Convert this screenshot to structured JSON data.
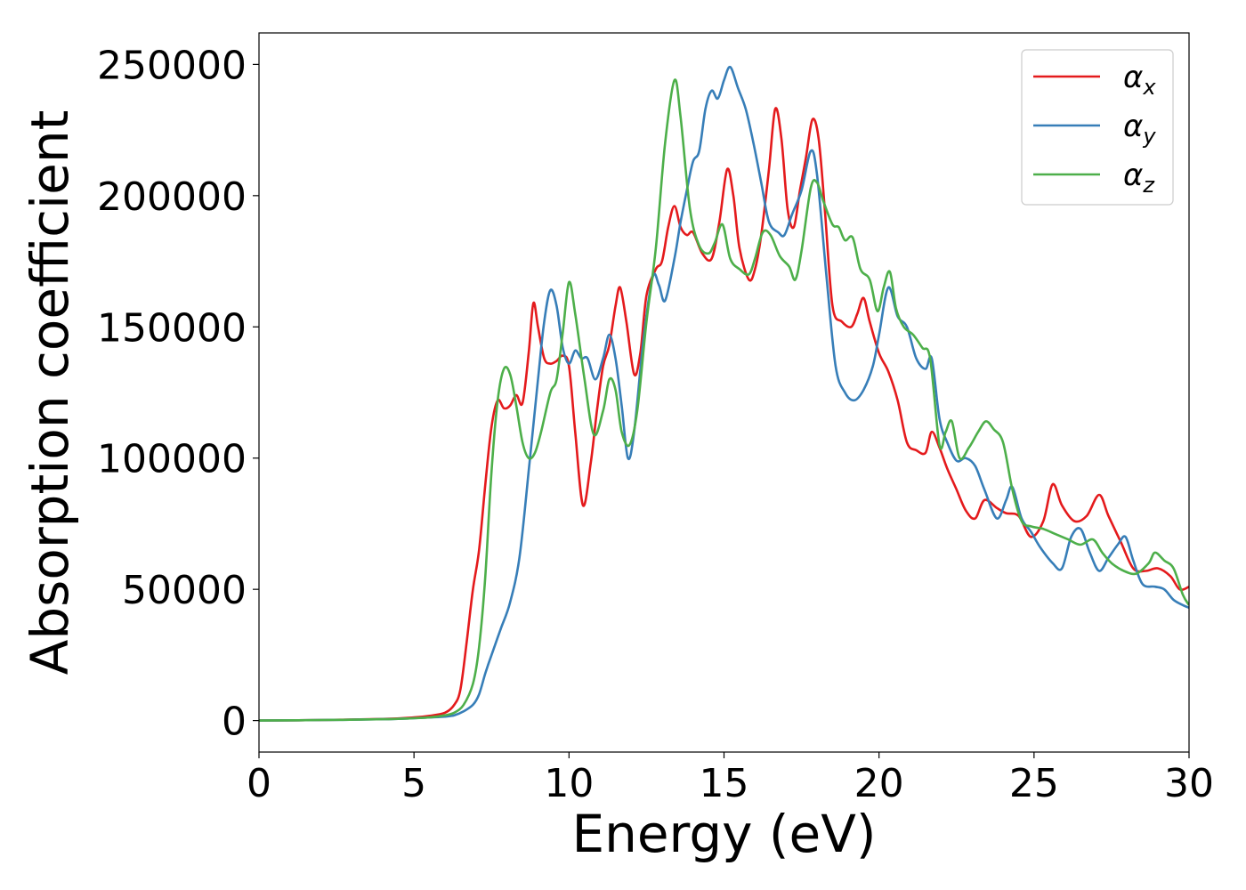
{
  "chart_data": {
    "type": "line",
    "xlabel": "Energy (eV)",
    "ylabel": "Absorption coefficient",
    "xlim": [
      0,
      30
    ],
    "ylim": [
      -12000,
      262000
    ],
    "xticks": [
      0,
      5,
      10,
      15,
      20,
      25,
      30
    ],
    "yticks": [
      0,
      50000,
      100000,
      150000,
      200000,
      250000
    ],
    "legend_position": "top-right",
    "grid": false,
    "series": [
      {
        "name": "α_x",
        "label_main": "α",
        "label_sub": "x",
        "color": "#e41a1c",
        "points": [
          [
            0,
            0
          ],
          [
            2,
            200
          ],
          [
            4,
            600
          ],
          [
            5,
            1200
          ],
          [
            5.5,
            1800
          ],
          [
            6,
            3000
          ],
          [
            6.3,
            6000
          ],
          [
            6.5,
            12000
          ],
          [
            6.7,
            30000
          ],
          [
            6.9,
            50000
          ],
          [
            7.1,
            65000
          ],
          [
            7.3,
            90000
          ],
          [
            7.5,
            112000
          ],
          [
            7.7,
            122000
          ],
          [
            7.9,
            119000
          ],
          [
            8.1,
            120000
          ],
          [
            8.3,
            124000
          ],
          [
            8.5,
            121000
          ],
          [
            8.7,
            140000
          ],
          [
            8.85,
            159000
          ],
          [
            9.0,
            150000
          ],
          [
            9.2,
            138000
          ],
          [
            9.4,
            136000
          ],
          [
            9.6,
            137000
          ],
          [
            9.8,
            139000
          ],
          [
            10.0,
            135000
          ],
          [
            10.2,
            110000
          ],
          [
            10.45,
            82000
          ],
          [
            10.7,
            98000
          ],
          [
            10.9,
            118000
          ],
          [
            11.1,
            135000
          ],
          [
            11.3,
            143000
          ],
          [
            11.5,
            158000
          ],
          [
            11.65,
            165000
          ],
          [
            11.85,
            152000
          ],
          [
            12.1,
            132000
          ],
          [
            12.3,
            140000
          ],
          [
            12.5,
            162000
          ],
          [
            12.8,
            172000
          ],
          [
            13.0,
            175000
          ],
          [
            13.2,
            188000
          ],
          [
            13.4,
            196000
          ],
          [
            13.6,
            188000
          ],
          [
            13.8,
            185000
          ],
          [
            14.0,
            186000
          ],
          [
            14.3,
            178000
          ],
          [
            14.6,
            176000
          ],
          [
            14.85,
            190000
          ],
          [
            15.1,
            210000
          ],
          [
            15.3,
            200000
          ],
          [
            15.5,
            180000
          ],
          [
            15.8,
            168000
          ],
          [
            16.0,
            172000
          ],
          [
            16.2,
            185000
          ],
          [
            16.45,
            210000
          ],
          [
            16.65,
            233000
          ],
          [
            16.85,
            222000
          ],
          [
            17.05,
            195000
          ],
          [
            17.25,
            188000
          ],
          [
            17.45,
            202000
          ],
          [
            17.65,
            215000
          ],
          [
            17.85,
            229000
          ],
          [
            18.05,
            222000
          ],
          [
            18.25,
            195000
          ],
          [
            18.5,
            158000
          ],
          [
            18.8,
            152000
          ],
          [
            19.1,
            150000
          ],
          [
            19.3,
            155000
          ],
          [
            19.5,
            161000
          ],
          [
            19.7,
            152000
          ],
          [
            20.0,
            140000
          ],
          [
            20.3,
            133000
          ],
          [
            20.6,
            122000
          ],
          [
            20.9,
            106000
          ],
          [
            21.2,
            103000
          ],
          [
            21.5,
            102000
          ],
          [
            21.7,
            110000
          ],
          [
            21.95,
            104000
          ],
          [
            22.2,
            96000
          ],
          [
            22.5,
            88000
          ],
          [
            22.8,
            80000
          ],
          [
            23.1,
            77000
          ],
          [
            23.4,
            84000
          ],
          [
            23.8,
            81000
          ],
          [
            24.1,
            79000
          ],
          [
            24.5,
            78000
          ],
          [
            24.9,
            70000
          ],
          [
            25.3,
            76000
          ],
          [
            25.6,
            90000
          ],
          [
            25.9,
            82000
          ],
          [
            26.3,
            76000
          ],
          [
            26.7,
            78000
          ],
          [
            27.1,
            86000
          ],
          [
            27.4,
            78000
          ],
          [
            27.8,
            68000
          ],
          [
            28.2,
            58000
          ],
          [
            28.6,
            57000
          ],
          [
            29.0,
            58000
          ],
          [
            29.4,
            55000
          ],
          [
            29.7,
            50000
          ],
          [
            30.0,
            51000
          ]
        ]
      },
      {
        "name": "α_y",
        "label_main": "α",
        "label_sub": "y",
        "color": "#377eb8",
        "points": [
          [
            0,
            0
          ],
          [
            2,
            200
          ],
          [
            4,
            500
          ],
          [
            5,
            900
          ],
          [
            5.5,
            1200
          ],
          [
            6,
            1500
          ],
          [
            6.3,
            2000
          ],
          [
            6.6,
            3500
          ],
          [
            6.9,
            6000
          ],
          [
            7.1,
            10000
          ],
          [
            7.3,
            18000
          ],
          [
            7.5,
            25000
          ],
          [
            7.8,
            35000
          ],
          [
            8.1,
            45000
          ],
          [
            8.4,
            62000
          ],
          [
            8.7,
            95000
          ],
          [
            9.0,
            130000
          ],
          [
            9.2,
            152000
          ],
          [
            9.4,
            164000
          ],
          [
            9.6,
            158000
          ],
          [
            9.8,
            142000
          ],
          [
            10.0,
            136000
          ],
          [
            10.2,
            141000
          ],
          [
            10.4,
            138000
          ],
          [
            10.6,
            138000
          ],
          [
            10.85,
            130000
          ],
          [
            11.1,
            138000
          ],
          [
            11.3,
            147000
          ],
          [
            11.5,
            138000
          ],
          [
            11.7,
            120000
          ],
          [
            11.9,
            100000
          ],
          [
            12.1,
            110000
          ],
          [
            12.4,
            145000
          ],
          [
            12.7,
            169000
          ],
          [
            12.9,
            166000
          ],
          [
            13.1,
            160000
          ],
          [
            13.4,
            176000
          ],
          [
            13.6,
            190000
          ],
          [
            13.8,
            202000
          ],
          [
            14.0,
            213000
          ],
          [
            14.2,
            217000
          ],
          [
            14.4,
            233000
          ],
          [
            14.6,
            240000
          ],
          [
            14.8,
            237000
          ],
          [
            15.0,
            244000
          ],
          [
            15.2,
            249000
          ],
          [
            15.45,
            241000
          ],
          [
            15.7,
            233000
          ],
          [
            15.95,
            220000
          ],
          [
            16.2,
            205000
          ],
          [
            16.45,
            190000
          ],
          [
            16.75,
            186000
          ],
          [
            16.95,
            185000
          ],
          [
            17.2,
            193000
          ],
          [
            17.5,
            202000
          ],
          [
            17.8,
            217000
          ],
          [
            18.0,
            208000
          ],
          [
            18.3,
            170000
          ],
          [
            18.6,
            135000
          ],
          [
            18.9,
            125000
          ],
          [
            19.2,
            122000
          ],
          [
            19.5,
            126000
          ],
          [
            19.8,
            135000
          ],
          [
            20.0,
            147000
          ],
          [
            20.3,
            165000
          ],
          [
            20.6,
            154000
          ],
          [
            20.9,
            150000
          ],
          [
            21.2,
            138000
          ],
          [
            21.5,
            134000
          ],
          [
            21.7,
            138000
          ],
          [
            21.95,
            115000
          ],
          [
            22.2,
            106000
          ],
          [
            22.5,
            99000
          ],
          [
            22.8,
            100000
          ],
          [
            23.1,
            97000
          ],
          [
            23.4,
            88000
          ],
          [
            23.8,
            77000
          ],
          [
            24.1,
            84000
          ],
          [
            24.3,
            89000
          ],
          [
            24.6,
            77000
          ],
          [
            24.9,
            72000
          ],
          [
            25.2,
            66000
          ],
          [
            25.6,
            60000
          ],
          [
            25.9,
            58000
          ],
          [
            26.2,
            70000
          ],
          [
            26.5,
            73000
          ],
          [
            26.8,
            64000
          ],
          [
            27.1,
            57000
          ],
          [
            27.4,
            62000
          ],
          [
            27.7,
            67000
          ],
          [
            27.95,
            70000
          ],
          [
            28.2,
            61000
          ],
          [
            28.5,
            52000
          ],
          [
            28.9,
            51000
          ],
          [
            29.2,
            50000
          ],
          [
            29.5,
            46000
          ],
          [
            29.8,
            44000
          ],
          [
            30.0,
            43000
          ]
        ]
      },
      {
        "name": "α_z",
        "label_main": "α",
        "label_sub": "z",
        "color": "#4daf4a",
        "points": [
          [
            0,
            0
          ],
          [
            2,
            200
          ],
          [
            4,
            500
          ],
          [
            5,
            900
          ],
          [
            5.5,
            1200
          ],
          [
            6,
            2000
          ],
          [
            6.3,
            3000
          ],
          [
            6.6,
            6000
          ],
          [
            6.9,
            14000
          ],
          [
            7.1,
            28000
          ],
          [
            7.3,
            55000
          ],
          [
            7.5,
            95000
          ],
          [
            7.7,
            122000
          ],
          [
            7.9,
            134000
          ],
          [
            8.1,
            132000
          ],
          [
            8.3,
            120000
          ],
          [
            8.5,
            106000
          ],
          [
            8.7,
            100000
          ],
          [
            8.9,
            102000
          ],
          [
            9.1,
            110000
          ],
          [
            9.4,
            125000
          ],
          [
            9.6,
            130000
          ],
          [
            9.8,
            148000
          ],
          [
            10.0,
            167000
          ],
          [
            10.2,
            155000
          ],
          [
            10.5,
            130000
          ],
          [
            10.8,
            109000
          ],
          [
            11.1,
            118000
          ],
          [
            11.3,
            130000
          ],
          [
            11.5,
            126000
          ],
          [
            11.7,
            110000
          ],
          [
            11.95,
            105000
          ],
          [
            12.2,
            118000
          ],
          [
            12.5,
            152000
          ],
          [
            12.8,
            180000
          ],
          [
            13.1,
            220000
          ],
          [
            13.4,
            244000
          ],
          [
            13.6,
            230000
          ],
          [
            13.9,
            195000
          ],
          [
            14.2,
            181000
          ],
          [
            14.5,
            178000
          ],
          [
            14.7,
            182000
          ],
          [
            14.95,
            189000
          ],
          [
            15.2,
            176000
          ],
          [
            15.5,
            172000
          ],
          [
            15.8,
            170000
          ],
          [
            16.0,
            176000
          ],
          [
            16.25,
            186000
          ],
          [
            16.5,
            185000
          ],
          [
            16.8,
            177000
          ],
          [
            17.1,
            173000
          ],
          [
            17.3,
            168000
          ],
          [
            17.5,
            179000
          ],
          [
            17.8,
            203000
          ],
          [
            18.0,
            205000
          ],
          [
            18.2,
            198000
          ],
          [
            18.5,
            189000
          ],
          [
            18.7,
            188000
          ],
          [
            18.9,
            183000
          ],
          [
            19.15,
            184000
          ],
          [
            19.4,
            172000
          ],
          [
            19.7,
            168000
          ],
          [
            19.95,
            156000
          ],
          [
            20.15,
            165000
          ],
          [
            20.35,
            171000
          ],
          [
            20.55,
            157000
          ],
          [
            20.8,
            150000
          ],
          [
            21.1,
            147000
          ],
          [
            21.4,
            142000
          ],
          [
            21.65,
            138000
          ],
          [
            21.95,
            105000
          ],
          [
            22.15,
            110000
          ],
          [
            22.35,
            114000
          ],
          [
            22.6,
            100000
          ],
          [
            22.9,
            104000
          ],
          [
            23.2,
            110000
          ],
          [
            23.45,
            114000
          ],
          [
            23.7,
            111000
          ],
          [
            24.0,
            106000
          ],
          [
            24.3,
            88000
          ],
          [
            24.6,
            76000
          ],
          [
            24.9,
            74000
          ],
          [
            25.3,
            73000
          ],
          [
            25.7,
            71000
          ],
          [
            26.1,
            69000
          ],
          [
            26.5,
            67000
          ],
          [
            26.9,
            69000
          ],
          [
            27.2,
            64000
          ],
          [
            27.5,
            60000
          ],
          [
            27.9,
            57000
          ],
          [
            28.3,
            56000
          ],
          [
            28.7,
            60000
          ],
          [
            28.9,
            64000
          ],
          [
            29.2,
            61000
          ],
          [
            29.5,
            58000
          ],
          [
            29.8,
            48000
          ],
          [
            30.0,
            44000
          ]
        ]
      }
    ]
  }
}
